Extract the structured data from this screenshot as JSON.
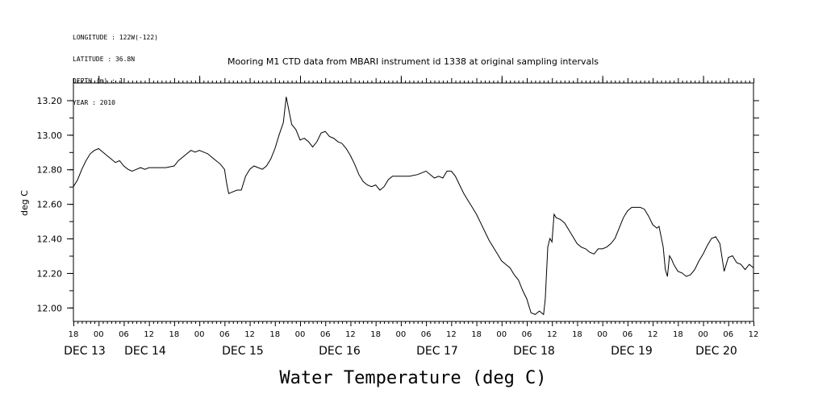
{
  "header": {
    "lines": [
      "LONGITUDE : 122W(-122)",
      "LATITUDE : 36.8N",
      "DEPTH (m) : 1",
      "YEAR : 2010"
    ]
  },
  "chart_data": {
    "type": "line",
    "title": "Mooring M1 CTD data from MBARI instrument id 1338 at original sampling intervals",
    "xlabel": "Water Temperature (deg C)",
    "ylabel": "deg C",
    "ylim": [
      11.92,
      13.3
    ],
    "yticks": [
      12.0,
      12.2,
      12.4,
      12.6,
      12.8,
      13.0,
      13.2
    ],
    "ytick_labels": [
      "12.00",
      "12.20",
      "12.40",
      "12.60",
      "12.80",
      "13.00",
      "13.20"
    ],
    "xlim_hours": [
      0,
      162
    ],
    "hour_tick_labels": [
      "18",
      "00",
      "06",
      "12",
      "18",
      "00",
      "06",
      "12",
      "18",
      "00",
      "06",
      "12",
      "18",
      "00",
      "06",
      "12",
      "18",
      "00",
      "06",
      "12",
      "18",
      "00",
      "06",
      "12",
      "18",
      "00",
      "06",
      "12"
    ],
    "day_labels": [
      "DEC 13",
      "DEC 14",
      "DEC 15",
      "DEC 16",
      "DEC 17",
      "DEC 18",
      "DEC 19",
      "DEC 20"
    ],
    "series": [
      {
        "points": [
          [
            0,
            12.7
          ],
          [
            1,
            12.74
          ],
          [
            2,
            12.8
          ],
          [
            3,
            12.85
          ],
          [
            4,
            12.89
          ],
          [
            5,
            12.91
          ],
          [
            6,
            12.92
          ],
          [
            7,
            12.9
          ],
          [
            8,
            12.88
          ],
          [
            9,
            12.86
          ],
          [
            10,
            12.84
          ],
          [
            11,
            12.85
          ],
          [
            12,
            12.82
          ],
          [
            13,
            12.8
          ],
          [
            14,
            12.79
          ],
          [
            15,
            12.8
          ],
          [
            16,
            12.81
          ],
          [
            17,
            12.8
          ],
          [
            18,
            12.81
          ],
          [
            20,
            12.81
          ],
          [
            22,
            12.81
          ],
          [
            24,
            12.82
          ],
          [
            25,
            12.85
          ],
          [
            26,
            12.87
          ],
          [
            27,
            12.89
          ],
          [
            28,
            12.91
          ],
          [
            29,
            12.9
          ],
          [
            30,
            12.91
          ],
          [
            32,
            12.89
          ],
          [
            33,
            12.87
          ],
          [
            34,
            12.85
          ],
          [
            35,
            12.83
          ],
          [
            36,
            12.8
          ],
          [
            36.5,
            12.72
          ],
          [
            37,
            12.66
          ],
          [
            38,
            12.67
          ],
          [
            39,
            12.68
          ],
          [
            40,
            12.68
          ],
          [
            41,
            12.76
          ],
          [
            42,
            12.8
          ],
          [
            43,
            12.82
          ],
          [
            44,
            12.81
          ],
          [
            45,
            12.8
          ],
          [
            46,
            12.82
          ],
          [
            47,
            12.86
          ],
          [
            48,
            12.92
          ],
          [
            49,
            13.0
          ],
          [
            50,
            13.07
          ],
          [
            50.7,
            13.22
          ],
          [
            51.5,
            13.12
          ],
          [
            52,
            13.06
          ],
          [
            53,
            13.03
          ],
          [
            54,
            12.97
          ],
          [
            55,
            12.98
          ],
          [
            56,
            12.96
          ],
          [
            57,
            12.93
          ],
          [
            58,
            12.96
          ],
          [
            59,
            13.01
          ],
          [
            60,
            13.02
          ],
          [
            61,
            12.99
          ],
          [
            62,
            12.98
          ],
          [
            63,
            12.96
          ],
          [
            64,
            12.95
          ],
          [
            65,
            12.92
          ],
          [
            66,
            12.88
          ],
          [
            67,
            12.83
          ],
          [
            68,
            12.77
          ],
          [
            69,
            12.73
          ],
          [
            70,
            12.71
          ],
          [
            71,
            12.7
          ],
          [
            72,
            12.71
          ],
          [
            73,
            12.68
          ],
          [
            74,
            12.7
          ],
          [
            75,
            12.74
          ],
          [
            76,
            12.76
          ],
          [
            78,
            12.76
          ],
          [
            80,
            12.76
          ],
          [
            82,
            12.77
          ],
          [
            84,
            12.79
          ],
          [
            85,
            12.77
          ],
          [
            86,
            12.75
          ],
          [
            87,
            12.76
          ],
          [
            88,
            12.75
          ],
          [
            89,
            12.79
          ],
          [
            90,
            12.79
          ],
          [
            91,
            12.76
          ],
          [
            92,
            12.71
          ],
          [
            93,
            12.66
          ],
          [
            94,
            12.62
          ],
          [
            95,
            12.58
          ],
          [
            96,
            12.54
          ],
          [
            97,
            12.49
          ],
          [
            98,
            12.44
          ],
          [
            99,
            12.39
          ],
          [
            100,
            12.35
          ],
          [
            101,
            12.31
          ],
          [
            102,
            12.27
          ],
          [
            103,
            12.25
          ],
          [
            104,
            12.23
          ],
          [
            105,
            12.19
          ],
          [
            106,
            12.16
          ],
          [
            107,
            12.1
          ],
          [
            108,
            12.05
          ],
          [
            109,
            11.97
          ],
          [
            110,
            11.96
          ],
          [
            111,
            11.98
          ],
          [
            112,
            11.96
          ],
          [
            112.4,
            12.05
          ],
          [
            113,
            12.35
          ],
          [
            113.5,
            12.4
          ],
          [
            114,
            12.38
          ],
          [
            114.5,
            12.54
          ],
          [
            115,
            12.52
          ],
          [
            116,
            12.51
          ],
          [
            117,
            12.49
          ],
          [
            118,
            12.45
          ],
          [
            119,
            12.41
          ],
          [
            120,
            12.37
          ],
          [
            121,
            12.35
          ],
          [
            122,
            12.34
          ],
          [
            123,
            12.32
          ],
          [
            124,
            12.31
          ],
          [
            125,
            12.34
          ],
          [
            126,
            12.34
          ],
          [
            127,
            12.35
          ],
          [
            128,
            12.37
          ],
          [
            129,
            12.4
          ],
          [
            130,
            12.46
          ],
          [
            131,
            12.52
          ],
          [
            132,
            12.56
          ],
          [
            133,
            12.58
          ],
          [
            134,
            12.58
          ],
          [
            135,
            12.58
          ],
          [
            136,
            12.57
          ],
          [
            137,
            12.53
          ],
          [
            138,
            12.48
          ],
          [
            139,
            12.46
          ],
          [
            139.5,
            12.47
          ],
          [
            140.5,
            12.35
          ],
          [
            141,
            12.22
          ],
          [
            141.5,
            12.18
          ],
          [
            142,
            12.3
          ],
          [
            142.5,
            12.28
          ],
          [
            143,
            12.25
          ],
          [
            144,
            12.21
          ],
          [
            145,
            12.2
          ],
          [
            146,
            12.18
          ],
          [
            147,
            12.19
          ],
          [
            148,
            12.22
          ],
          [
            149,
            12.27
          ],
          [
            150,
            12.31
          ],
          [
            151,
            12.36
          ],
          [
            152,
            12.4
          ],
          [
            153,
            12.41
          ],
          [
            154,
            12.37
          ],
          [
            155,
            12.21
          ],
          [
            156,
            12.29
          ],
          [
            157,
            12.3
          ],
          [
            158,
            12.26
          ],
          [
            159,
            12.25
          ],
          [
            160,
            12.22
          ],
          [
            161,
            12.25
          ],
          [
            162,
            12.23
          ]
        ]
      }
    ]
  }
}
